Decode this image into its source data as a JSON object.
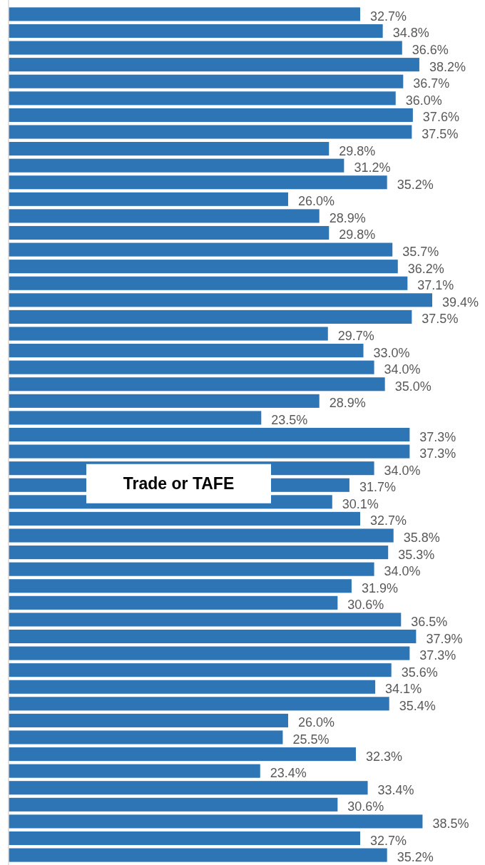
{
  "chart_data": {
    "type": "bar",
    "orientation": "horizontal",
    "color": "#2e75b6",
    "categories": [
      null,
      null,
      null,
      null,
      null,
      null,
      null,
      null,
      null,
      null,
      null,
      null,
      null,
      null,
      null,
      null,
      null,
      null,
      null,
      null,
      null,
      null,
      null,
      null,
      null,
      null,
      null,
      null,
      null,
      null,
      null,
      null,
      null,
      null,
      null,
      null,
      null,
      null,
      null,
      null,
      null,
      null,
      null,
      null,
      null,
      null,
      null,
      null,
      null,
      null,
      null
    ],
    "values": [
      32.7,
      34.8,
      36.6,
      38.2,
      36.7,
      36.0,
      37.6,
      37.5,
      29.8,
      31.2,
      35.2,
      26.0,
      28.9,
      29.8,
      35.7,
      36.2,
      37.1,
      39.4,
      37.5,
      29.7,
      33.0,
      34.0,
      35.0,
      28.9,
      23.5,
      37.3,
      37.3,
      34.0,
      31.7,
      30.1,
      32.7,
      35.8,
      35.3,
      34.0,
      31.9,
      30.6,
      36.5,
      37.9,
      37.3,
      35.6,
      34.1,
      35.4,
      26.0,
      25.5,
      32.3,
      23.4,
      33.4,
      30.6,
      38.5,
      32.7,
      35.2
    ],
    "value_labels": [
      "32.7%",
      "34.8%",
      "36.6%",
      "38.2%",
      "36.7%",
      "36.0%",
      "37.6%",
      "37.5%",
      "29.8%",
      "31.2%",
      "35.2%",
      "26.0%",
      "28.9%",
      "29.8%",
      "35.7%",
      "36.2%",
      "37.1%",
      "39.4%",
      "37.5%",
      "29.7%",
      "33.0%",
      "34.0%",
      "35.0%",
      "28.9%",
      "23.5%",
      "37.3%",
      "37.3%",
      "34.0%",
      "31.7%",
      "30.1%",
      "32.7%",
      "35.8%",
      "35.3%",
      "34.0%",
      "31.9%",
      "30.6%",
      "36.5%",
      "37.9%",
      "37.3%",
      "35.6%",
      "34.1%",
      "35.4%",
      "26.0%",
      "25.5%",
      "32.3%",
      "23.4%",
      "33.4%",
      "30.6%",
      "38.5%",
      "32.7%",
      "35.2%"
    ],
    "annotations": [
      "Trade or TAFE"
    ]
  }
}
